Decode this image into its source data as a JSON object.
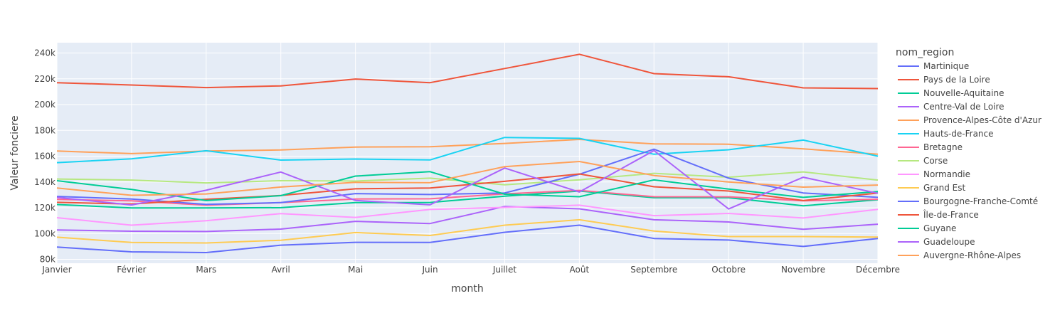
{
  "chart_data": {
    "type": "line",
    "xlabel": "month",
    "ylabel": "Valeur fonciere",
    "categories": [
      "Janvier",
      "Février",
      "Mars",
      "Avril",
      "Mai",
      "Juin",
      "Juillet",
      "Août",
      "Septembre",
      "Octobre",
      "Novembre",
      "Décembre"
    ],
    "ylim": [
      77000,
      248000
    ],
    "yticks": [
      80000,
      100000,
      120000,
      140000,
      160000,
      180000,
      200000,
      220000,
      240000
    ],
    "ytick_labels": [
      "80k",
      "100k",
      "120k",
      "140k",
      "160k",
      "180k",
      "200k",
      "220k",
      "240k"
    ],
    "grid": true,
    "legend": {
      "title": "nom_region",
      "placement": "right"
    },
    "series": [
      {
        "name": "Martinique",
        "color": "#636efa",
        "values": [
          89500,
          85800,
          85300,
          91000,
          93200,
          93100,
          101000,
          106500,
          96200,
          95000,
          90000,
          96200
        ]
      },
      {
        "name": "Pays de la Loire",
        "color": "#EF553B",
        "values": [
          217000,
          215200,
          213200,
          214500,
          219800,
          217000,
          228000,
          239000,
          224000,
          221600,
          213000,
          212400
        ]
      },
      {
        "name": "Nouvelle-Aquitaine",
        "color": "#00cc96",
        "values": [
          122500,
          119900,
          119900,
          120100,
          124000,
          124100,
          129000,
          133000,
          127800,
          127800,
          121500,
          126200
        ]
      },
      {
        "name": "Centre-Val de Loire",
        "color": "#ab63fa",
        "values": [
          102800,
          101800,
          101600,
          103500,
          109500,
          107800,
          121000,
          119200,
          110700,
          109000,
          103300,
          107300
        ]
      },
      {
        "name": "Provence-Alpes-Côte d'Azur",
        "color": "#FFA15A",
        "values": [
          164000,
          162000,
          164000,
          164800,
          167100,
          167300,
          169900,
          173000,
          169500,
          169300,
          165700,
          161500
        ]
      },
      {
        "name": "Hauts-de-France",
        "color": "#19d3f3",
        "values": [
          155000,
          158000,
          164200,
          157000,
          157800,
          157100,
          174500,
          173800,
          161500,
          165000,
          172500,
          160000
        ]
      },
      {
        "name": "Bretagne",
        "color": "#FF6692",
        "values": [
          126500,
          125400,
          122000,
          124000,
          126800,
          127000,
          130800,
          133500,
          128600,
          128500,
          125400,
          126600
        ]
      },
      {
        "name": "Corse",
        "color": "#B6E880",
        "values": [
          142300,
          141500,
          139300,
          141000,
          140700,
          143000,
          137800,
          141700,
          146700,
          143700,
          147800,
          141500
        ]
      },
      {
        "name": "Normandie",
        "color": "#FF97FF",
        "values": [
          112300,
          106500,
          110000,
          115500,
          112500,
          118700,
          120300,
          122000,
          113900,
          115600,
          112100,
          118800
        ]
      },
      {
        "name": "Grand Est",
        "color": "#FECB52",
        "values": [
          97200,
          93100,
          92700,
          94800,
          100800,
          98500,
          106500,
          110700,
          102000,
          97700,
          97700,
          97300
        ]
      },
      {
        "name": "Bourgogne-Franche-Comté",
        "color": "#636efa",
        "values": [
          128800,
          126800,
          122600,
          124000,
          131000,
          130300,
          131500,
          146000,
          165400,
          143000,
          131500,
          128100
        ]
      },
      {
        "name": "Île-de-France",
        "color": "#EF553B",
        "values": [
          124200,
          122900,
          126600,
          129500,
          134700,
          135300,
          140500,
          146200,
          136300,
          133000,
          125600,
          131400
        ]
      },
      {
        "name": "Guyane",
        "color": "#00cc96",
        "values": [
          141000,
          134200,
          125600,
          129400,
          144600,
          148000,
          130500,
          128600,
          141600,
          134500,
          128100,
          132600
        ]
      },
      {
        "name": "Guadeloupe",
        "color": "#ab63fa",
        "values": [
          128000,
          122200,
          133600,
          147700,
          125700,
          122300,
          150800,
          132200,
          164400,
          119100,
          143700,
          131200
        ]
      },
      {
        "name": "Auvergne-Rhône-Alpes",
        "color": "#FFA15A",
        "values": [
          135300,
          129700,
          130700,
          136100,
          139700,
          139500,
          151900,
          155900,
          145000,
          140000,
          136000,
          137600
        ]
      }
    ]
  }
}
